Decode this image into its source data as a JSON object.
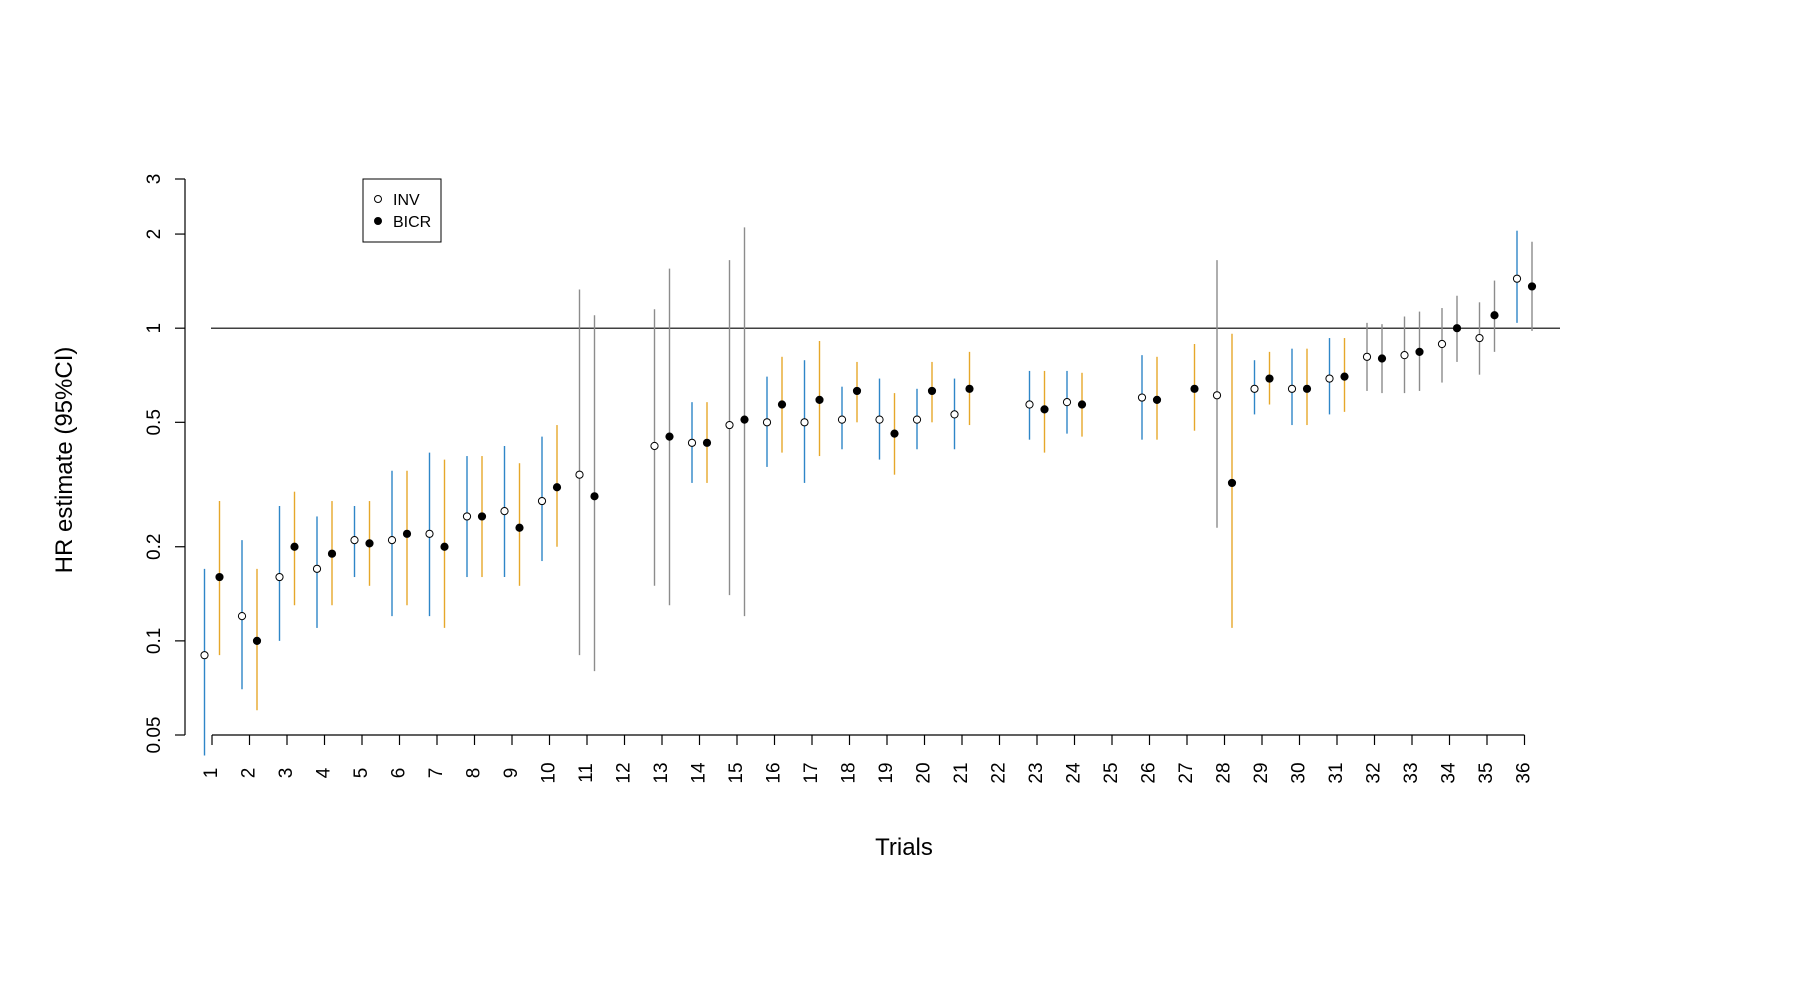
{
  "chart_data": {
    "type": "scatter",
    "xlabel": "Trials",
    "ylabel": "HR estimate (95%CI)",
    "y_scale": "log",
    "ylim": [
      0.05,
      3
    ],
    "y_ticks": [
      0.05,
      0.1,
      0.2,
      0.5,
      1,
      2,
      3
    ],
    "y_tick_labels": [
      "0.05",
      "0.1",
      "0.2",
      "0.5",
      "1",
      "2",
      "3"
    ],
    "reference_line": 1,
    "grid": false,
    "legend_position": "top-left",
    "legend": [
      {
        "name": "INV",
        "marker": "open-circle"
      },
      {
        "name": "BICR",
        "marker": "filled-circle"
      }
    ],
    "ci_colors": {
      "blue": "#2E86C8",
      "orange": "#E6A72A",
      "gray": "#8C8C8C"
    },
    "x_tick_labels": [
      "1",
      "2",
      "3",
      "4",
      "5",
      "6",
      "7",
      "8",
      "9",
      "10",
      "11",
      "12",
      "13",
      "14",
      "15",
      "16",
      "17",
      "18",
      "19",
      "20",
      "21",
      "22",
      "23",
      "24",
      "25",
      "26",
      "27",
      "28",
      "29",
      "30",
      "31",
      "32",
      "33",
      "34",
      "35",
      "36"
    ],
    "trials": [
      {
        "label": "1",
        "inv": {
          "hr": 0.09,
          "lo": 0.043,
          "hi": 0.17,
          "color": "blue"
        },
        "bicr": {
          "hr": 0.16,
          "lo": 0.09,
          "hi": 0.28,
          "color": "orange"
        }
      },
      {
        "label": "2",
        "inv": {
          "hr": 0.12,
          "lo": 0.07,
          "hi": 0.21,
          "color": "blue"
        },
        "bicr": {
          "hr": 0.1,
          "lo": 0.06,
          "hi": 0.17,
          "color": "orange"
        }
      },
      {
        "label": "3",
        "inv": {
          "hr": 0.16,
          "lo": 0.1,
          "hi": 0.27,
          "color": "blue"
        },
        "bicr": {
          "hr": 0.2,
          "lo": 0.13,
          "hi": 0.3,
          "color": "orange"
        }
      },
      {
        "label": "4",
        "inv": {
          "hr": 0.17,
          "lo": 0.11,
          "hi": 0.25,
          "color": "blue"
        },
        "bicr": {
          "hr": 0.19,
          "lo": 0.13,
          "hi": 0.28,
          "color": "orange"
        }
      },
      {
        "label": "5",
        "inv": {
          "hr": 0.21,
          "lo": 0.16,
          "hi": 0.27,
          "color": "blue"
        },
        "bicr": {
          "hr": 0.205,
          "lo": 0.15,
          "hi": 0.28,
          "color": "orange"
        }
      },
      {
        "label": "6",
        "inv": {
          "hr": 0.21,
          "lo": 0.12,
          "hi": 0.35,
          "color": "blue"
        },
        "bicr": {
          "hr": 0.22,
          "lo": 0.13,
          "hi": 0.35,
          "color": "orange"
        }
      },
      {
        "label": "7",
        "inv": {
          "hr": 0.22,
          "lo": 0.12,
          "hi": 0.4,
          "color": "blue"
        },
        "bicr": {
          "hr": 0.2,
          "lo": 0.11,
          "hi": 0.38,
          "color": "orange"
        }
      },
      {
        "label": "8",
        "inv": {
          "hr": 0.25,
          "lo": 0.16,
          "hi": 0.39,
          "color": "blue"
        },
        "bicr": {
          "hr": 0.25,
          "lo": 0.16,
          "hi": 0.39,
          "color": "orange"
        }
      },
      {
        "label": "9",
        "inv": {
          "hr": 0.26,
          "lo": 0.16,
          "hi": 0.42,
          "color": "blue"
        },
        "bicr": {
          "hr": 0.23,
          "lo": 0.15,
          "hi": 0.37,
          "color": "orange"
        }
      },
      {
        "label": "10",
        "inv": {
          "hr": 0.28,
          "lo": 0.18,
          "hi": 0.45,
          "color": "blue"
        },
        "bicr": {
          "hr": 0.31,
          "lo": 0.2,
          "hi": 0.49,
          "color": "orange"
        }
      },
      {
        "label": "11",
        "inv": {
          "hr": 0.34,
          "lo": 0.09,
          "hi": 1.33,
          "color": "gray"
        },
        "bicr": {
          "hr": 0.29,
          "lo": 0.08,
          "hi": 1.1,
          "color": "gray"
        }
      },
      {
        "label": "12",
        "inv": null,
        "bicr": null
      },
      {
        "label": "13",
        "inv": {
          "hr": 0.42,
          "lo": 0.15,
          "hi": 1.15,
          "color": "gray"
        },
        "bicr": {
          "hr": 0.45,
          "lo": 0.13,
          "hi": 1.55,
          "color": "gray"
        }
      },
      {
        "label": "14",
        "inv": {
          "hr": 0.43,
          "lo": 0.32,
          "hi": 0.58,
          "color": "blue"
        },
        "bicr": {
          "hr": 0.43,
          "lo": 0.32,
          "hi": 0.58,
          "color": "orange"
        }
      },
      {
        "label": "15",
        "inv": {
          "hr": 0.49,
          "lo": 0.14,
          "hi": 1.65,
          "color": "gray"
        },
        "bicr": {
          "hr": 0.51,
          "lo": 0.12,
          "hi": 2.1,
          "color": "gray"
        }
      },
      {
        "label": "16",
        "inv": {
          "hr": 0.5,
          "lo": 0.36,
          "hi": 0.7,
          "color": "blue"
        },
        "bicr": {
          "hr": 0.57,
          "lo": 0.4,
          "hi": 0.81,
          "color": "orange"
        }
      },
      {
        "label": "17",
        "inv": {
          "hr": 0.5,
          "lo": 0.32,
          "hi": 0.79,
          "color": "blue"
        },
        "bicr": {
          "hr": 0.59,
          "lo": 0.39,
          "hi": 0.91,
          "color": "orange"
        }
      },
      {
        "label": "18",
        "inv": {
          "hr": 0.51,
          "lo": 0.41,
          "hi": 0.65,
          "color": "blue"
        },
        "bicr": {
          "hr": 0.63,
          "lo": 0.5,
          "hi": 0.78,
          "color": "orange"
        }
      },
      {
        "label": "19",
        "inv": {
          "hr": 0.51,
          "lo": 0.38,
          "hi": 0.69,
          "color": "blue"
        },
        "bicr": {
          "hr": 0.46,
          "lo": 0.34,
          "hi": 0.62,
          "color": "orange"
        }
      },
      {
        "label": "20",
        "inv": {
          "hr": 0.51,
          "lo": 0.41,
          "hi": 0.64,
          "color": "blue"
        },
        "bicr": {
          "hr": 0.63,
          "lo": 0.5,
          "hi": 0.78,
          "color": "orange"
        }
      },
      {
        "label": "21",
        "inv": {
          "hr": 0.53,
          "lo": 0.41,
          "hi": 0.69,
          "color": "blue"
        },
        "bicr": {
          "hr": 0.64,
          "lo": 0.49,
          "hi": 0.84,
          "color": "orange"
        }
      },
      {
        "label": "22",
        "inv": null,
        "bicr": null
      },
      {
        "label": "23",
        "inv": {
          "hr": 0.57,
          "lo": 0.44,
          "hi": 0.73,
          "color": "blue"
        },
        "bicr": {
          "hr": 0.55,
          "lo": 0.4,
          "hi": 0.73,
          "color": "orange"
        }
      },
      {
        "label": "24",
        "inv": {
          "hr": 0.58,
          "lo": 0.46,
          "hi": 0.73,
          "color": "blue"
        },
        "bicr": {
          "hr": 0.57,
          "lo": 0.45,
          "hi": 0.72,
          "color": "orange"
        }
      },
      {
        "label": "25",
        "inv": null,
        "bicr": null
      },
      {
        "label": "26",
        "inv": {
          "hr": 0.6,
          "lo": 0.44,
          "hi": 0.82,
          "color": "blue"
        },
        "bicr": {
          "hr": 0.59,
          "lo": 0.44,
          "hi": 0.81,
          "color": "orange"
        }
      },
      {
        "label": "27",
        "inv": null,
        "bicr": {
          "hr": 0.64,
          "lo": 0.47,
          "hi": 0.89,
          "color": "orange"
        }
      },
      {
        "label": "28",
        "inv": {
          "hr": 0.61,
          "lo": 0.23,
          "hi": 1.65,
          "color": "gray"
        },
        "bicr": {
          "hr": 0.32,
          "lo": 0.11,
          "hi": 0.96,
          "color": "orange"
        }
      },
      {
        "label": "29",
        "inv": {
          "hr": 0.64,
          "lo": 0.53,
          "hi": 0.79,
          "color": "blue"
        },
        "bicr": {
          "hr": 0.69,
          "lo": 0.57,
          "hi": 0.84,
          "color": "orange"
        }
      },
      {
        "label": "30",
        "inv": {
          "hr": 0.64,
          "lo": 0.49,
          "hi": 0.86,
          "color": "blue"
        },
        "bicr": {
          "hr": 0.64,
          "lo": 0.49,
          "hi": 0.86,
          "color": "orange"
        }
      },
      {
        "label": "31",
        "inv": {
          "hr": 0.69,
          "lo": 0.53,
          "hi": 0.93,
          "color": "blue"
        },
        "bicr": {
          "hr": 0.7,
          "lo": 0.54,
          "hi": 0.93,
          "color": "orange"
        }
      },
      {
        "label": "32",
        "inv": {
          "hr": 0.81,
          "lo": 0.63,
          "hi": 1.04,
          "color": "gray"
        },
        "bicr": {
          "hr": 0.8,
          "lo": 0.62,
          "hi": 1.03,
          "color": "gray"
        }
      },
      {
        "label": "33",
        "inv": {
          "hr": 0.82,
          "lo": 0.62,
          "hi": 1.09,
          "color": "gray"
        },
        "bicr": {
          "hr": 0.84,
          "lo": 0.63,
          "hi": 1.13,
          "color": "gray"
        }
      },
      {
        "label": "34",
        "inv": {
          "hr": 0.89,
          "lo": 0.67,
          "hi": 1.16,
          "color": "gray"
        },
        "bicr": {
          "hr": 1.0,
          "lo": 0.78,
          "hi": 1.27,
          "color": "gray"
        }
      },
      {
        "label": "35",
        "inv": {
          "hr": 0.93,
          "lo": 0.71,
          "hi": 1.21,
          "color": "gray"
        },
        "bicr": {
          "hr": 1.1,
          "lo": 0.84,
          "hi": 1.42,
          "color": "gray"
        }
      },
      {
        "label": "36",
        "inv": {
          "hr": 1.44,
          "lo": 1.04,
          "hi": 2.05,
          "color": "blue"
        },
        "bicr": {
          "hr": 1.36,
          "lo": 0.98,
          "hi": 1.89,
          "color": "gray"
        }
      }
    ]
  }
}
